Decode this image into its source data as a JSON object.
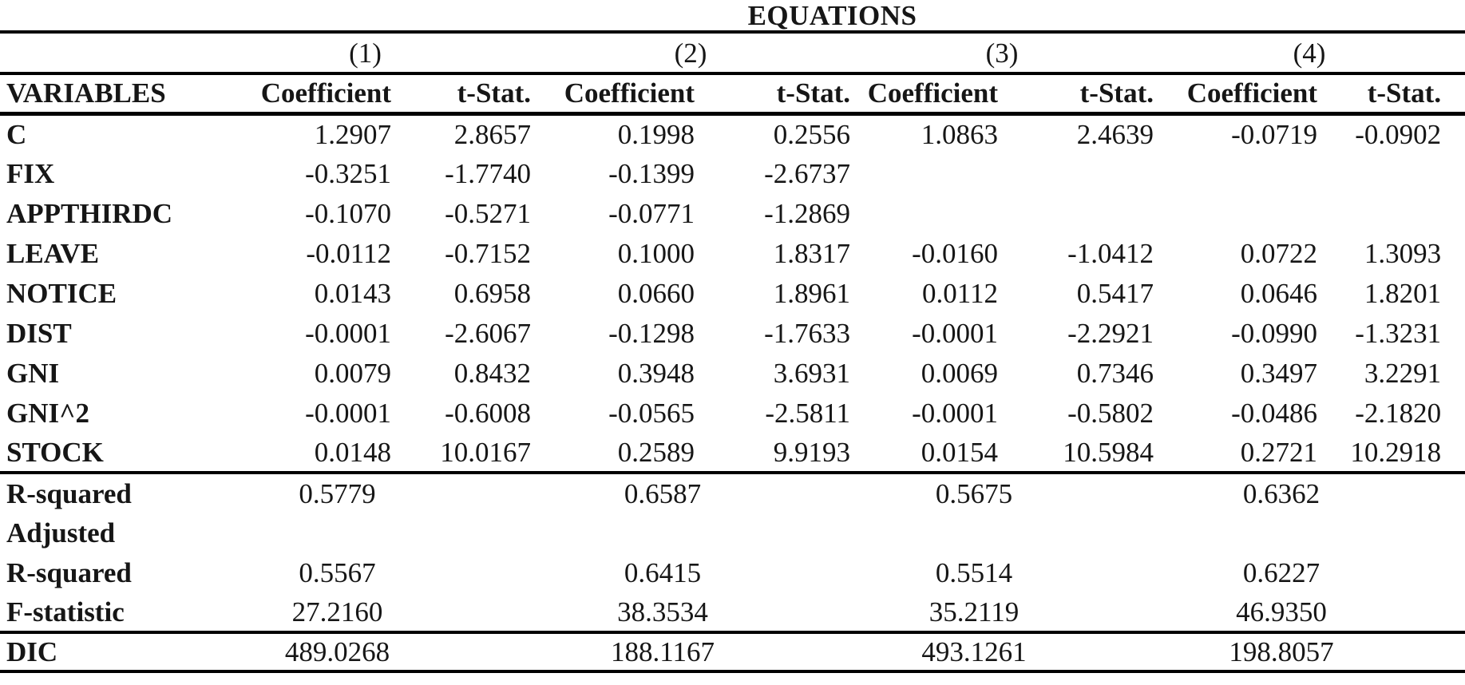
{
  "title": "EQUATIONS",
  "columns": {
    "variables_label": "VARIABLES",
    "groups": [
      "(1)",
      "(2)",
      "(3)",
      "(4)"
    ],
    "subheaders": [
      "Coefficient",
      "t-Stat.",
      "Coefficient",
      "t-Stat.",
      "Coefficient",
      "t-Stat.",
      "Coefficient",
      "t-Stat."
    ]
  },
  "rows": [
    {
      "label": "C",
      "values": [
        "1.2907",
        "2.8657",
        "0.1998",
        "0.2556",
        "1.0863",
        "2.4639",
        "-0.0719",
        "-0.0902"
      ]
    },
    {
      "label": "FIX",
      "values": [
        "-0.3251",
        "-1.7740",
        "-0.1399",
        "-2.6737",
        "",
        "",
        "",
        ""
      ]
    },
    {
      "label": "APPTHIRDC",
      "values": [
        "-0.1070",
        "-0.5271",
        "-0.0771",
        "-1.2869",
        "",
        "",
        "",
        ""
      ]
    },
    {
      "label": "LEAVE",
      "values": [
        "-0.0112",
        "-0.7152",
        "0.1000",
        "1.8317",
        "-0.0160",
        "-1.0412",
        "0.0722",
        "1.3093"
      ]
    },
    {
      "label": "NOTICE",
      "values": [
        "0.0143",
        "0.6958",
        "0.0660",
        "1.8961",
        "0.0112",
        "0.5417",
        "0.0646",
        "1.8201"
      ]
    },
    {
      "label": "DIST",
      "values": [
        "-0.0001",
        "-2.6067",
        "-0.1298",
        "-1.7633",
        "-0.0001",
        "-2.2921",
        "-0.0990",
        "-1.3231"
      ]
    },
    {
      "label": "GNI",
      "values": [
        "0.0079",
        "0.8432",
        "0.3948",
        "3.6931",
        "0.0069",
        "0.7346",
        "0.3497",
        "3.2291"
      ]
    },
    {
      "label": "GNI^2",
      "values": [
        "-0.0001",
        "-0.6008",
        "-0.0565",
        "-2.5811",
        "-0.0001",
        "-0.5802",
        "-0.0486",
        "-2.1820"
      ]
    },
    {
      "label": "STOCK",
      "values": [
        "0.0148",
        "10.0167",
        "0.2589",
        "9.9193",
        "0.0154",
        "10.5984",
        "0.2721",
        "10.2918"
      ]
    }
  ],
  "summary_rows": [
    {
      "label": "R-squared",
      "values": [
        "0.5779",
        "0.6587",
        "0.5675",
        "0.6362"
      ]
    },
    {
      "label": "Adjusted",
      "values": [
        "",
        "",
        "",
        ""
      ]
    },
    {
      "label": "R-squared",
      "values": [
        "0.5567",
        "0.6415",
        "0.5514",
        "0.6227"
      ]
    },
    {
      "label": "F-statistic",
      "values": [
        "27.2160",
        "38.3534",
        "35.2119",
        "46.9350"
      ]
    }
  ],
  "dic_row": {
    "label": "DIC",
    "values": [
      "489.0268",
      "188.1167",
      "493.1261",
      "198.8057"
    ]
  },
  "colors": {
    "text": "#161616",
    "rule": "#000000",
    "background": "#ffffff"
  }
}
